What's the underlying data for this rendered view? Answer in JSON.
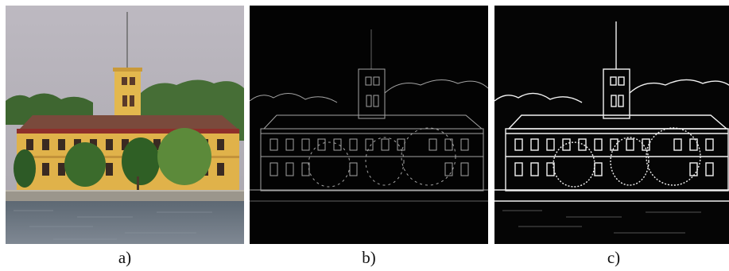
{
  "figure": {
    "panels": [
      {
        "id": "a",
        "caption": "a)",
        "content": "original-photo"
      },
      {
        "id": "b",
        "caption": "b)",
        "content": "edge-map"
      },
      {
        "id": "c",
        "caption": "c)",
        "content": "edge-map-enhanced"
      }
    ]
  },
  "colors": {
    "sky": "#b2aeb6",
    "trees": "#3e6630",
    "facade": "#e0b24a",
    "roof": "#7a4a3c",
    "trim": "#8e2f2a",
    "water": "#6d7783",
    "quay": "#9b968c",
    "edge_bg": "#030303",
    "edge_line_dim": "#bfbfbf",
    "edge_line_bright": "#f2f2f2"
  }
}
